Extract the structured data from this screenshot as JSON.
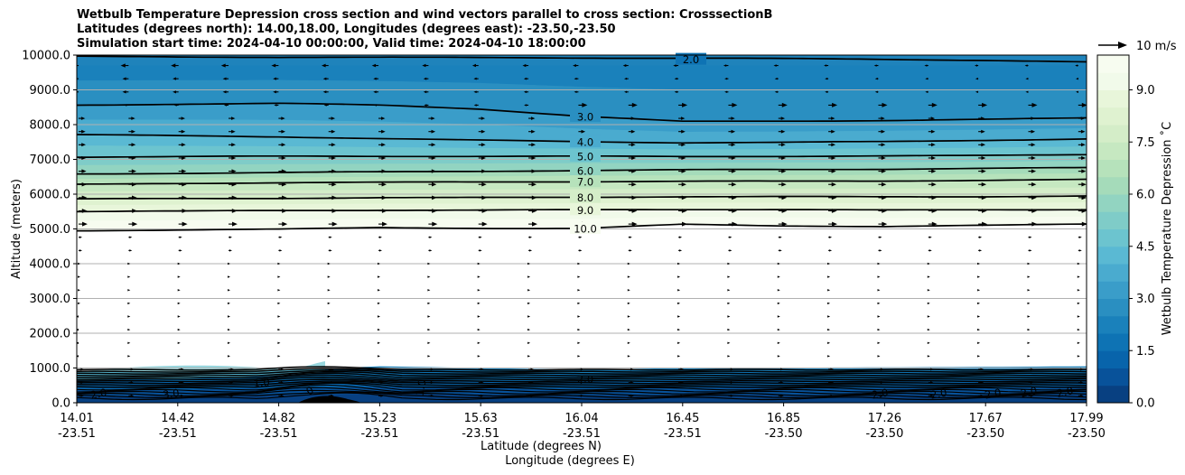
{
  "chart_data": {
    "type": "contour",
    "title_lines": [
      "Wetbulb Temperature Depression cross section and wind vectors parallel to cross section: CrosssectionB",
      "Latitudes (degrees north): 14.00,18.00, Longitudes (degrees east): -23.50,-23.50",
      "Simulation start time: 2024-04-10 00:00:00, Valid time: 2024-04-10 18:00:00"
    ],
    "ylabel": "Altitude (meters)",
    "xlabel_lines": [
      "Latitude (degrees N)",
      "Longitude (degrees E)"
    ],
    "ylim": [
      0,
      10000
    ],
    "y_ticks": [
      "0.0",
      "1000.0",
      "2000.0",
      "3000.0",
      "4000.0",
      "5000.0",
      "6000.0",
      "7000.0",
      "8000.0",
      "9000.0",
      "10000.0"
    ],
    "x_ticks": [
      {
        "lat": "14.01",
        "lon": "-23.51"
      },
      {
        "lat": "14.42",
        "lon": "-23.51"
      },
      {
        "lat": "14.82",
        "lon": "-23.51"
      },
      {
        "lat": "15.23",
        "lon": "-23.51"
      },
      {
        "lat": "15.63",
        "lon": "-23.51"
      },
      {
        "lat": "16.04",
        "lon": "-23.51"
      },
      {
        "lat": "16.45",
        "lon": "-23.51"
      },
      {
        "lat": "16.85",
        "lon": "-23.50"
      },
      {
        "lat": "17.26",
        "lon": "-23.50"
      },
      {
        "lat": "17.67",
        "lon": "-23.50"
      },
      {
        "lat": "17.99",
        "lon": "-23.50"
      }
    ],
    "grid": "horizontal",
    "colorbar": {
      "label": "Wetbulb Temperature Depression ˚C",
      "ticks": [
        "0.0",
        "1.5",
        "3.0",
        "4.5",
        "6.0",
        "7.5",
        "9.0"
      ],
      "min": 0.0,
      "max": 10.0,
      "levels": 20,
      "colormap": "GnBu_r",
      "colors": [
        "#084081",
        "#08529a",
        "#0864ab",
        "#0e73b4",
        "#1a81bb",
        "#2a8fc1",
        "#3a9dc9",
        "#4aabcf",
        "#5ab9d3",
        "#6cc4cf",
        "#7fccc8",
        "#92d4c1",
        "#a5dbba",
        "#b6e2bb",
        "#c6e8c1",
        "#d4edc8",
        "#dff2d0",
        "#e8f6da",
        "#f1faea",
        "#f7fcf0"
      ]
    },
    "contour_labels_upper": [
      "2.0",
      "3.0",
      "4.0",
      "5.0",
      "6.0",
      "7.0",
      "8.0",
      "9.0",
      "10.0"
    ],
    "contour_labels_lower": [
      "2.0",
      "3.0",
      "1.0",
      "0",
      "1.0",
      "2.0",
      "2.0",
      "2.0",
      "2.0",
      "2.0",
      "2.0"
    ],
    "wind_reference": {
      "label": "10 m/s"
    },
    "contour_lines": [
      {
        "label": "2.0",
        "alt": [
          9960,
          9950,
          9940,
          9935,
          9930,
          9920,
          9910,
          9900,
          9880,
          9850,
          9800
        ]
      },
      {
        "label": "3.0",
        "alt": [
          8560,
          8590,
          8610,
          8560,
          8450,
          8240,
          8090,
          8100,
          8120,
          8150,
          8190
        ]
      },
      {
        "label": "4.0",
        "alt": [
          7710,
          7680,
          7650,
          7600,
          7550,
          7510,
          7480,
          7490,
          7510,
          7550,
          7590
        ]
      },
      {
        "label": "5.0",
        "alt": [
          7070,
          7080,
          7090,
          7090,
          7090,
          7090,
          7080,
          7090,
          7100,
          7110,
          7140
        ]
      },
      {
        "label": "6.0",
        "alt": [
          6580,
          6600,
          6620,
          6640,
          6660,
          6680,
          6700,
          6710,
          6720,
          6740,
          6760
        ]
      },
      {
        "label": "7.0",
        "alt": [
          6280,
          6310,
          6330,
          6340,
          6350,
          6360,
          6370,
          6370,
          6380,
          6400,
          6420
        ]
      },
      {
        "label": "8.0",
        "alt": [
          5860,
          5870,
          5880,
          5900,
          5900,
          5910,
          5930,
          5930,
          5920,
          5930,
          5950
        ]
      },
      {
        "label": "9.0",
        "alt": [
          5500,
          5510,
          5530,
          5540,
          5540,
          5550,
          5560,
          5560,
          5540,
          5550,
          5560
        ]
      },
      {
        "label": "10.0",
        "alt": [
          4950,
          4970,
          4990,
          5040,
          5020,
          5010,
          5130,
          5090,
          5070,
          5100,
          5140
        ]
      }
    ]
  }
}
